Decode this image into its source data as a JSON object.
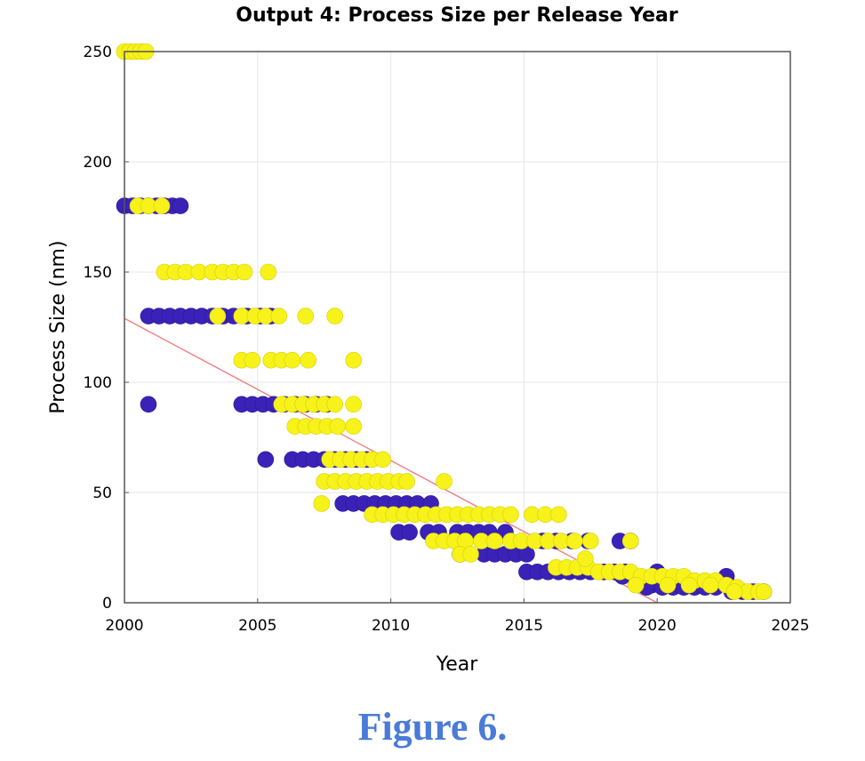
{
  "caption": "Figure 6.",
  "colors": {
    "series_a": "#3a22b8",
    "series_b": "#f7f21a",
    "trend": "#f08080",
    "grid": "#e6e6e6",
    "caption": "#4a7bd8"
  },
  "chart_data": {
    "type": "scatter",
    "title": "Output 4: Process Size per Release Year",
    "xlabel": "Year",
    "ylabel": "Process Size (nm)",
    "xlim": [
      2000,
      2025
    ],
    "ylim": [
      0,
      250
    ],
    "xticks": [
      "2000",
      "2005",
      "2010",
      "2015",
      "2020",
      "2025"
    ],
    "yticks": [
      "0",
      "50",
      "100",
      "150",
      "200",
      "250"
    ],
    "grid": true,
    "legend": "none",
    "series": [
      {
        "color": "#3a22b8",
        "points": [
          [
            2000.0,
            180
          ],
          [
            2000.3,
            180
          ],
          [
            2000.6,
            180
          ],
          [
            2000.9,
            180
          ],
          [
            2001.2,
            180
          ],
          [
            2001.5,
            180
          ],
          [
            2001.8,
            180
          ],
          [
            2002.1,
            180
          ],
          [
            2000.9,
            130
          ],
          [
            2001.3,
            130
          ],
          [
            2001.7,
            130
          ],
          [
            2002.1,
            130
          ],
          [
            2002.5,
            130
          ],
          [
            2002.9,
            130
          ],
          [
            2003.3,
            130
          ],
          [
            2003.7,
            130
          ],
          [
            2004.1,
            130
          ],
          [
            2004.6,
            130
          ],
          [
            2005.1,
            130
          ],
          [
            2005.5,
            130
          ],
          [
            2000.9,
            90
          ],
          [
            2004.4,
            90
          ],
          [
            2004.8,
            90
          ],
          [
            2005.2,
            90
          ],
          [
            2005.6,
            90
          ],
          [
            2006.0,
            90
          ],
          [
            2006.4,
            90
          ],
          [
            2006.8,
            90
          ],
          [
            2007.2,
            90
          ],
          [
            2007.6,
            90
          ],
          [
            2005.3,
            65
          ],
          [
            2006.3,
            65
          ],
          [
            2006.7,
            65
          ],
          [
            2007.1,
            65
          ],
          [
            2007.5,
            65
          ],
          [
            2007.9,
            65
          ],
          [
            2008.3,
            65
          ],
          [
            2008.7,
            65
          ],
          [
            2009.1,
            65
          ],
          [
            2008.2,
            45
          ],
          [
            2008.6,
            45
          ],
          [
            2009.0,
            45
          ],
          [
            2009.4,
            45
          ],
          [
            2009.8,
            45
          ],
          [
            2010.2,
            45
          ],
          [
            2010.6,
            45
          ],
          [
            2011.0,
            45
          ],
          [
            2011.5,
            45
          ],
          [
            2010.3,
            32
          ],
          [
            2010.7,
            32
          ],
          [
            2011.4,
            32
          ],
          [
            2011.8,
            32
          ],
          [
            2012.5,
            32
          ],
          [
            2012.9,
            32
          ],
          [
            2013.3,
            32
          ],
          [
            2013.7,
            32
          ],
          [
            2014.3,
            32
          ],
          [
            2012.6,
            22
          ],
          [
            2013.5,
            22
          ],
          [
            2013.9,
            22
          ],
          [
            2014.3,
            22
          ],
          [
            2014.7,
            22
          ],
          [
            2015.1,
            22
          ],
          [
            2015.1,
            14
          ],
          [
            2015.5,
            14
          ],
          [
            2015.9,
            14
          ],
          [
            2016.3,
            14
          ],
          [
            2016.7,
            14
          ],
          [
            2017.1,
            14
          ],
          [
            2017.5,
            14
          ],
          [
            2018.0,
            14
          ],
          [
            2018.4,
            14
          ],
          [
            2018.8,
            14
          ],
          [
            2015.7,
            28
          ],
          [
            2016.2,
            28
          ],
          [
            2016.8,
            28
          ],
          [
            2017.4,
            28
          ],
          [
            2018.6,
            28
          ],
          [
            2019.0,
            28
          ],
          [
            2018.7,
            12
          ],
          [
            2019.1,
            12
          ],
          [
            2019.5,
            10
          ],
          [
            2019.8,
            8
          ],
          [
            2020.2,
            7
          ],
          [
            2020.6,
            7
          ],
          [
            2021.0,
            7
          ],
          [
            2021.4,
            7
          ],
          [
            2021.8,
            7
          ],
          [
            2022.2,
            7
          ],
          [
            2022.6,
            12
          ],
          [
            2022.8,
            5
          ],
          [
            2023.2,
            5
          ],
          [
            2023.6,
            5
          ],
          [
            2024.0,
            5
          ],
          [
            2019.6,
            7
          ],
          [
            2020.0,
            14
          ]
        ]
      },
      {
        "color": "#f7f21a",
        "points": [
          [
            2000.0,
            250
          ],
          [
            2000.2,
            250
          ],
          [
            2000.4,
            250
          ],
          [
            2000.6,
            250
          ],
          [
            2000.8,
            250
          ],
          [
            2000.5,
            180
          ],
          [
            2000.9,
            180
          ],
          [
            2001.4,
            180
          ],
          [
            2001.5,
            150
          ],
          [
            2001.9,
            150
          ],
          [
            2002.3,
            150
          ],
          [
            2002.8,
            150
          ],
          [
            2003.3,
            150
          ],
          [
            2003.7,
            150
          ],
          [
            2004.1,
            150
          ],
          [
            2004.5,
            150
          ],
          [
            2005.4,
            150
          ],
          [
            2003.5,
            130
          ],
          [
            2004.4,
            130
          ],
          [
            2004.9,
            130
          ],
          [
            2005.3,
            130
          ],
          [
            2005.8,
            130
          ],
          [
            2006.8,
            130
          ],
          [
            2007.9,
            130
          ],
          [
            2004.4,
            110
          ],
          [
            2004.8,
            110
          ],
          [
            2005.5,
            110
          ],
          [
            2005.9,
            110
          ],
          [
            2006.3,
            110
          ],
          [
            2006.9,
            110
          ],
          [
            2008.6,
            110
          ],
          [
            2005.9,
            90
          ],
          [
            2006.3,
            90
          ],
          [
            2006.7,
            90
          ],
          [
            2007.1,
            90
          ],
          [
            2007.5,
            90
          ],
          [
            2007.9,
            90
          ],
          [
            2008.6,
            90
          ],
          [
            2006.4,
            80
          ],
          [
            2006.8,
            80
          ],
          [
            2007.2,
            80
          ],
          [
            2007.6,
            80
          ],
          [
            2008.0,
            80
          ],
          [
            2008.6,
            80
          ],
          [
            2007.7,
            65
          ],
          [
            2008.1,
            65
          ],
          [
            2008.5,
            65
          ],
          [
            2008.9,
            65
          ],
          [
            2009.3,
            65
          ],
          [
            2009.7,
            65
          ],
          [
            2007.4,
            45
          ],
          [
            2007.5,
            55
          ],
          [
            2007.9,
            55
          ],
          [
            2008.3,
            55
          ],
          [
            2008.7,
            55
          ],
          [
            2009.1,
            55
          ],
          [
            2009.5,
            55
          ],
          [
            2009.9,
            55
          ],
          [
            2010.3,
            55
          ],
          [
            2010.6,
            55
          ],
          [
            2012.0,
            55
          ],
          [
            2009.3,
            40
          ],
          [
            2009.7,
            40
          ],
          [
            2010.1,
            40
          ],
          [
            2010.5,
            40
          ],
          [
            2010.9,
            40
          ],
          [
            2011.3,
            40
          ],
          [
            2011.7,
            40
          ],
          [
            2012.1,
            40
          ],
          [
            2012.5,
            40
          ],
          [
            2012.9,
            40
          ],
          [
            2013.3,
            40
          ],
          [
            2013.7,
            40
          ],
          [
            2014.1,
            40
          ],
          [
            2014.5,
            40
          ],
          [
            2015.3,
            40
          ],
          [
            2015.8,
            40
          ],
          [
            2016.3,
            40
          ],
          [
            2011.6,
            28
          ],
          [
            2012.0,
            28
          ],
          [
            2012.4,
            28
          ],
          [
            2012.8,
            28
          ],
          [
            2013.4,
            28
          ],
          [
            2013.9,
            28
          ],
          [
            2014.5,
            28
          ],
          [
            2014.9,
            28
          ],
          [
            2015.4,
            28
          ],
          [
            2015.9,
            28
          ],
          [
            2016.4,
            28
          ],
          [
            2016.9,
            28
          ],
          [
            2017.5,
            28
          ],
          [
            2019.0,
            28
          ],
          [
            2012.6,
            22
          ],
          [
            2013.0,
            22
          ],
          [
            2016.2,
            16
          ],
          [
            2016.6,
            16
          ],
          [
            2017.0,
            16
          ],
          [
            2017.4,
            16
          ],
          [
            2017.8,
            14
          ],
          [
            2018.2,
            14
          ],
          [
            2018.6,
            14
          ],
          [
            2019.0,
            14
          ],
          [
            2019.4,
            12
          ],
          [
            2019.8,
            12
          ],
          [
            2020.2,
            12
          ],
          [
            2020.6,
            12
          ],
          [
            2021.0,
            12
          ],
          [
            2021.4,
            10
          ],
          [
            2021.8,
            10
          ],
          [
            2022.2,
            10
          ],
          [
            2022.6,
            8
          ],
          [
            2023.0,
            7
          ],
          [
            2023.4,
            5
          ],
          [
            2023.8,
            5
          ],
          [
            2024.0,
            5
          ],
          [
            2019.2,
            8
          ],
          [
            2020.4,
            8
          ],
          [
            2021.2,
            8
          ],
          [
            2022.0,
            8
          ],
          [
            2022.9,
            5
          ],
          [
            2017.3,
            20
          ]
        ]
      }
    ],
    "trendline": {
      "x": [
        2000,
        2020
      ],
      "y": [
        129,
        0
      ]
    }
  }
}
